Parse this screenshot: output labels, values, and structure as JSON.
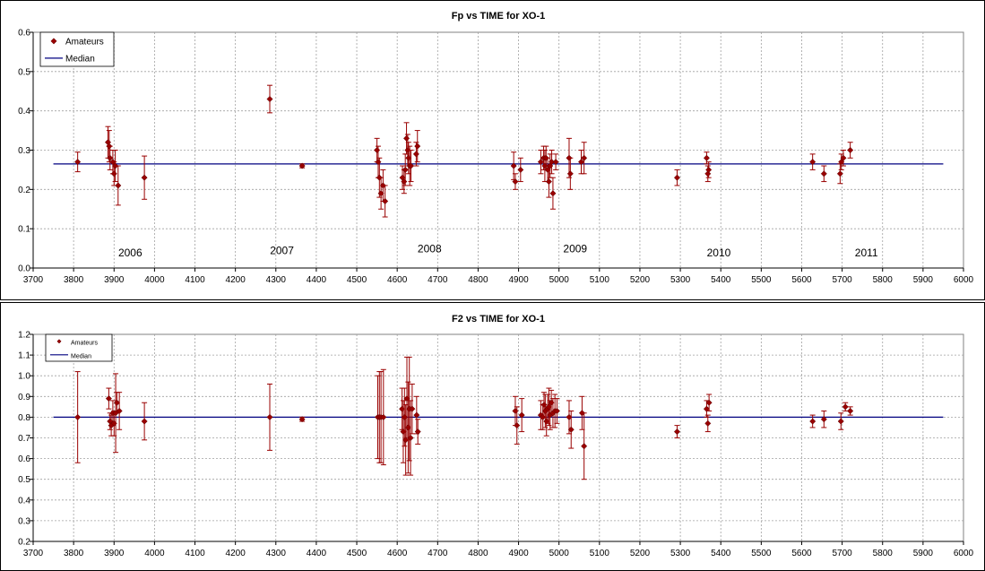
{
  "chart_data": [
    {
      "type": "scatter",
      "title": "Fp vs TIME for XO-1",
      "xlim": [
        3700,
        6000
      ],
      "xticks": [
        3700,
        3800,
        3900,
        4000,
        4100,
        4200,
        4300,
        4400,
        4500,
        4600,
        4700,
        4800,
        4900,
        5000,
        5100,
        5200,
        5300,
        5400,
        5500,
        5600,
        5700,
        5800,
        5900,
        6000
      ],
      "ylim": [
        0,
        0.6
      ],
      "yticks": [
        "0.0",
        "0.1",
        "0.2",
        "0.3",
        "0.4",
        "0.5",
        "0.6"
      ],
      "grid": true,
      "legend_position": "top-left",
      "legend": {
        "amateurs": "Amateurs",
        "median": "Median"
      },
      "marker_color": "#990000",
      "median_color": "#000080",
      "median": {
        "value": 0.265,
        "x_start": 3750,
        "x_end": 5950
      },
      "year_labels": [
        {
          "text": "2006",
          "x": 3940,
          "y": 0.03
        },
        {
          "text": "2007",
          "x": 4315,
          "y": 0.035
        },
        {
          "text": "2008",
          "x": 4680,
          "y": 0.04
        },
        {
          "text": "2009",
          "x": 5040,
          "y": 0.04
        },
        {
          "text": "2010",
          "x": 5395,
          "y": 0.03
        },
        {
          "text": "2011",
          "x": 5760,
          "y": 0.03
        }
      ],
      "points": [
        {
          "x": 3810,
          "y": 0.27,
          "err": 0.025
        },
        {
          "x": 3885,
          "y": 0.32,
          "err": 0.04
        },
        {
          "x": 3888,
          "y": 0.31,
          "err": 0.04
        },
        {
          "x": 3890,
          "y": 0.28,
          "err": 0.03
        },
        {
          "x": 3897,
          "y": 0.27,
          "err": 0.03
        },
        {
          "x": 3900,
          "y": 0.24,
          "err": 0.03
        },
        {
          "x": 3903,
          "y": 0.26,
          "err": 0.04
        },
        {
          "x": 3910,
          "y": 0.21,
          "err": 0.05
        },
        {
          "x": 3975,
          "y": 0.23,
          "err": 0.055
        },
        {
          "x": 4285,
          "y": 0.43,
          "err": 0.035
        },
        {
          "x": 4365,
          "y": 0.26,
          "err": 0.005
        },
        {
          "x": 4550,
          "y": 0.3,
          "err": 0.03
        },
        {
          "x": 4553,
          "y": 0.27,
          "err": 0.04
        },
        {
          "x": 4556,
          "y": 0.23,
          "err": 0.05
        },
        {
          "x": 4560,
          "y": 0.19,
          "err": 0.04
        },
        {
          "x": 4565,
          "y": 0.21,
          "err": 0.04
        },
        {
          "x": 4570,
          "y": 0.17,
          "err": 0.04
        },
        {
          "x": 4613,
          "y": 0.23,
          "err": 0.03
        },
        {
          "x": 4617,
          "y": 0.22,
          "err": 0.03
        },
        {
          "x": 4620,
          "y": 0.25,
          "err": 0.04
        },
        {
          "x": 4623,
          "y": 0.33,
          "err": 0.04
        },
        {
          "x": 4626,
          "y": 0.3,
          "err": 0.04
        },
        {
          "x": 4628,
          "y": 0.28,
          "err": 0.04
        },
        {
          "x": 4631,
          "y": 0.26,
          "err": 0.05
        },
        {
          "x": 4634,
          "y": 0.26,
          "err": 0.04
        },
        {
          "x": 4647,
          "y": 0.29,
          "err": 0.03
        },
        {
          "x": 4650,
          "y": 0.31,
          "err": 0.04
        },
        {
          "x": 4888,
          "y": 0.26,
          "err": 0.035
        },
        {
          "x": 4892,
          "y": 0.22,
          "err": 0.02
        },
        {
          "x": 4905,
          "y": 0.25,
          "err": 0.03
        },
        {
          "x": 4955,
          "y": 0.27,
          "err": 0.03
        },
        {
          "x": 4962,
          "y": 0.28,
          "err": 0.03
        },
        {
          "x": 4965,
          "y": 0.26,
          "err": 0.04
        },
        {
          "x": 4968,
          "y": 0.28,
          "err": 0.03
        },
        {
          "x": 4972,
          "y": 0.25,
          "err": 0.03
        },
        {
          "x": 4975,
          "y": 0.22,
          "err": 0.04
        },
        {
          "x": 4978,
          "y": 0.26,
          "err": 0.03
        },
        {
          "x": 4982,
          "y": 0.27,
          "err": 0.03
        },
        {
          "x": 4985,
          "y": 0.19,
          "err": 0.04
        },
        {
          "x": 4992,
          "y": 0.27,
          "err": 0.02
        },
        {
          "x": 5025,
          "y": 0.28,
          "err": 0.05
        },
        {
          "x": 5028,
          "y": 0.24,
          "err": 0.04
        },
        {
          "x": 5055,
          "y": 0.27,
          "err": 0.03
        },
        {
          "x": 5062,
          "y": 0.28,
          "err": 0.04
        },
        {
          "x": 5292,
          "y": 0.23,
          "err": 0.02
        },
        {
          "x": 5365,
          "y": 0.28,
          "err": 0.015
        },
        {
          "x": 5368,
          "y": 0.24,
          "err": 0.02
        },
        {
          "x": 5370,
          "y": 0.25,
          "err": 0.02
        },
        {
          "x": 5627,
          "y": 0.27,
          "err": 0.02
        },
        {
          "x": 5655,
          "y": 0.24,
          "err": 0.02
        },
        {
          "x": 5695,
          "y": 0.24,
          "err": 0.025
        },
        {
          "x": 5698,
          "y": 0.27,
          "err": 0.02
        },
        {
          "x": 5703,
          "y": 0.28,
          "err": 0.02
        },
        {
          "x": 5720,
          "y": 0.3,
          "err": 0.02
        }
      ]
    },
    {
      "type": "scatter",
      "title": "F2 vs TIME for XO-1",
      "xlim": [
        3700,
        6000
      ],
      "xticks": [
        3700,
        3800,
        3900,
        4000,
        4100,
        4200,
        4300,
        4400,
        4500,
        4600,
        4700,
        4800,
        4900,
        5000,
        5100,
        5200,
        5300,
        5400,
        5500,
        5600,
        5700,
        5800,
        5900,
        6000
      ],
      "ylim": [
        0.2,
        1.2
      ],
      "yticks": [
        "0.2",
        "0.3",
        "0.4",
        "0.5",
        "0.6",
        "0.7",
        "0.8",
        "0.9",
        "1.0",
        "1.1",
        "1.2"
      ],
      "grid": true,
      "legend_position": "top-left",
      "legend": {
        "amateurs": "Amateurs",
        "median": "Median"
      },
      "marker_color": "#990000",
      "median_color": "#000080",
      "median": {
        "value": 0.8,
        "x_start": 3750,
        "x_end": 5950
      },
      "points": [
        {
          "x": 3810,
          "y": 0.8,
          "err": 0.22
        },
        {
          "x": 3887,
          "y": 0.89,
          "err": 0.05
        },
        {
          "x": 3890,
          "y": 0.78,
          "err": 0.04
        },
        {
          "x": 3893,
          "y": 0.76,
          "err": 0.05
        },
        {
          "x": 3897,
          "y": 0.82,
          "err": 0.06
        },
        {
          "x": 3900,
          "y": 0.77,
          "err": 0.06
        },
        {
          "x": 3904,
          "y": 0.82,
          "err": 0.19
        },
        {
          "x": 3907,
          "y": 0.87,
          "err": 0.05
        },
        {
          "x": 3913,
          "y": 0.83,
          "err": 0.09
        },
        {
          "x": 3975,
          "y": 0.78,
          "err": 0.09
        },
        {
          "x": 4285,
          "y": 0.8,
          "err": 0.16
        },
        {
          "x": 4365,
          "y": 0.79,
          "err": 0.01
        },
        {
          "x": 4552,
          "y": 0.8,
          "err": 0.2
        },
        {
          "x": 4556,
          "y": 0.8,
          "err": 0.22
        },
        {
          "x": 4560,
          "y": 0.8,
          "err": 0.22
        },
        {
          "x": 4566,
          "y": 0.8,
          "err": 0.23
        },
        {
          "x": 4612,
          "y": 0.84,
          "err": 0.1
        },
        {
          "x": 4615,
          "y": 0.73,
          "err": 0.15
        },
        {
          "x": 4618,
          "y": 0.8,
          "err": 0.14
        },
        {
          "x": 4621,
          "y": 0.69,
          "err": 0.17
        },
        {
          "x": 4624,
          "y": 0.89,
          "err": 0.2
        },
        {
          "x": 4627,
          "y": 0.75,
          "err": 0.22
        },
        {
          "x": 4630,
          "y": 0.84,
          "err": 0.25
        },
        {
          "x": 4633,
          "y": 0.7,
          "err": 0.18
        },
        {
          "x": 4637,
          "y": 0.84,
          "err": 0.12
        },
        {
          "x": 4648,
          "y": 0.81,
          "err": 0.09
        },
        {
          "x": 4651,
          "y": 0.73,
          "err": 0.06
        },
        {
          "x": 4892,
          "y": 0.83,
          "err": 0.07
        },
        {
          "x": 4896,
          "y": 0.76,
          "err": 0.09
        },
        {
          "x": 4908,
          "y": 0.81,
          "err": 0.08
        },
        {
          "x": 4955,
          "y": 0.81,
          "err": 0.07
        },
        {
          "x": 4960,
          "y": 0.8,
          "err": 0.06
        },
        {
          "x": 4963,
          "y": 0.86,
          "err": 0.06
        },
        {
          "x": 4966,
          "y": 0.83,
          "err": 0.08
        },
        {
          "x": 4969,
          "y": 0.78,
          "err": 0.07
        },
        {
          "x": 4972,
          "y": 0.84,
          "err": 0.07
        },
        {
          "x": 4975,
          "y": 0.85,
          "err": 0.09
        },
        {
          "x": 4978,
          "y": 0.81,
          "err": 0.07
        },
        {
          "x": 4981,
          "y": 0.87,
          "err": 0.06
        },
        {
          "x": 4985,
          "y": 0.82,
          "err": 0.07
        },
        {
          "x": 4990,
          "y": 0.83,
          "err": 0.08
        },
        {
          "x": 4995,
          "y": 0.83,
          "err": 0.06
        },
        {
          "x": 5025,
          "y": 0.8,
          "err": 0.08
        },
        {
          "x": 5030,
          "y": 0.74,
          "err": 0.09
        },
        {
          "x": 5057,
          "y": 0.82,
          "err": 0.08
        },
        {
          "x": 5062,
          "y": 0.66,
          "err": 0.16
        },
        {
          "x": 5292,
          "y": 0.73,
          "err": 0.03
        },
        {
          "x": 5365,
          "y": 0.84,
          "err": 0.04
        },
        {
          "x": 5368,
          "y": 0.77,
          "err": 0.04
        },
        {
          "x": 5371,
          "y": 0.87,
          "err": 0.04
        },
        {
          "x": 5627,
          "y": 0.78,
          "err": 0.03
        },
        {
          "x": 5655,
          "y": 0.79,
          "err": 0.04
        },
        {
          "x": 5697,
          "y": 0.78,
          "err": 0.04
        },
        {
          "x": 5708,
          "y": 0.85,
          "err": 0.02
        },
        {
          "x": 5720,
          "y": 0.83,
          "err": 0.02
        }
      ]
    }
  ]
}
